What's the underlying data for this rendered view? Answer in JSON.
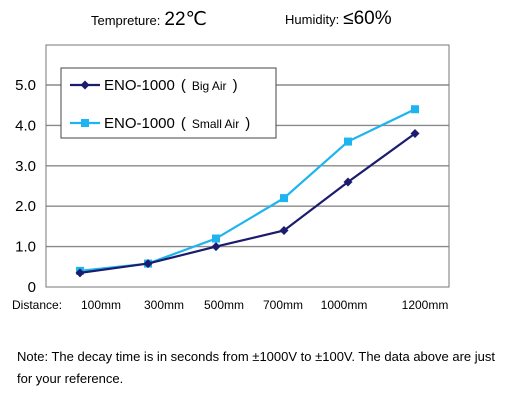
{
  "header": {
    "temperature_label": "Tempreture:",
    "temperature_value": "22℃",
    "humidity_label": "Humidity:",
    "humidity_value": "≤60%"
  },
  "chart_data": {
    "type": "line",
    "x_prefix": "Distance:",
    "categories": [
      "100mm",
      "300mm",
      "500mm",
      "700mm",
      "1000mm",
      "1200mm"
    ],
    "ylim": [
      0,
      5.0
    ],
    "yticks": [
      "0",
      "1.0",
      "2.0",
      "3.0",
      "4.0",
      "5.0"
    ],
    "grid": true,
    "legend_position": "top-left",
    "series": [
      {
        "name": "ENO-1000",
        "name_suffix_open": "(",
        "name_suffix_text": "Big Air",
        "name_suffix_close": ")",
        "color": "#1c1c6e",
        "marker": "diamond",
        "values": [
          0.35,
          0.58,
          1.0,
          1.4,
          2.6,
          3.8
        ]
      },
      {
        "name": "ENO-1000",
        "name_suffix_open": "(",
        "name_suffix_text": "Small Air",
        "name_suffix_close": ")",
        "color": "#1eb4f0",
        "marker": "square",
        "values": [
          0.4,
          0.58,
          1.2,
          2.2,
          3.6,
          4.4
        ]
      }
    ]
  },
  "note": "Note: The decay time is in seconds from ±1000V to ±100V. The data above are just for your reference."
}
